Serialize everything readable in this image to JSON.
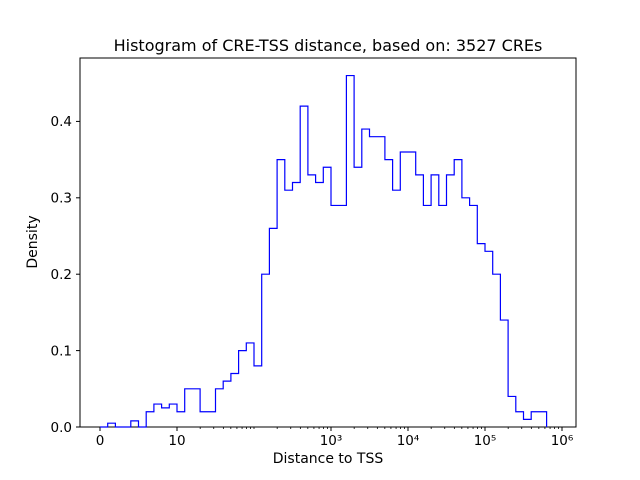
{
  "chart_data": {
    "type": "bar",
    "subtype": "step-histogram",
    "title": "Histogram of CRE-TSS distance, based on: 3527 CREs",
    "xlabel": "Distance to TSS",
    "ylabel": "Density",
    "x_scale": "symlog",
    "line_color": "#0000ff",
    "axes_color": "#000000",
    "background_color": "#ffffff",
    "legend": "none",
    "grid": false,
    "ylim": [
      0,
      0.483
    ],
    "y_ticks": [
      "0.0",
      "0.1",
      "0.2",
      "0.3",
      "0.4"
    ],
    "x_ticks": [
      {
        "value": 0,
        "label": "0"
      },
      {
        "value": 10,
        "label": "10"
      },
      {
        "value": 1000,
        "label": "10³"
      },
      {
        "value": 10000,
        "label": "10⁴"
      },
      {
        "value": 100000,
        "label": "10⁵"
      },
      {
        "value": 1000000,
        "label": "10⁶"
      }
    ],
    "bin_edges_log10": [
      0.0,
      0.1,
      0.2,
      0.3,
      0.4,
      0.5,
      0.6,
      0.7,
      0.8,
      0.9,
      1.0,
      1.1,
      1.2,
      1.3,
      1.4,
      1.5,
      1.6,
      1.7,
      1.8,
      1.9,
      2.0,
      2.1,
      2.2,
      2.3,
      2.4,
      2.5,
      2.6,
      2.7,
      2.8,
      2.9,
      3.0,
      3.1,
      3.2,
      3.3,
      3.4,
      3.5,
      3.6,
      3.7,
      3.8,
      3.9,
      4.0,
      4.1,
      4.2,
      4.3,
      4.4,
      4.5,
      4.6,
      4.7,
      4.8,
      4.9,
      5.0,
      5.1,
      5.2,
      5.3,
      5.4,
      5.5,
      5.6,
      5.7,
      5.8
    ],
    "densities": [
      0,
      0.005,
      0,
      0,
      0.008,
      0,
      0.02,
      0.03,
      0.025,
      0.03,
      0.02,
      0.05,
      0.05,
      0.02,
      0.02,
      0.05,
      0.06,
      0.07,
      0.1,
      0.11,
      0.08,
      0.2,
      0.26,
      0.35,
      0.31,
      0.32,
      0.42,
      0.33,
      0.32,
      0.34,
      0.29,
      0.29,
      0.46,
      0.34,
      0.39,
      0.38,
      0.38,
      0.35,
      0.31,
      0.36,
      0.36,
      0.33,
      0.29,
      0.33,
      0.29,
      0.33,
      0.35,
      0.3,
      0.29,
      0.24,
      0.23,
      0.2,
      0.14,
      0.04,
      0.02,
      0.01,
      0.02,
      0.02
    ]
  }
}
